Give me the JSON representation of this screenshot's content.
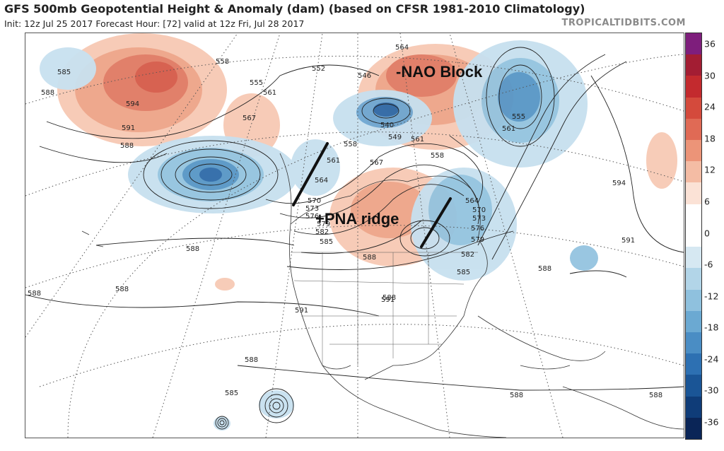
{
  "header": {
    "title": "GFS 500mb Geopotential Height & Anomaly (dam) (based on CFSR 1981-2010 Climatology)",
    "subtitle": "Init: 12z Jul 25 2017   Forecast Hour: [72]   valid at 12z Fri, Jul 28 2017",
    "brand": "TROPICALTIDBITS.COM"
  },
  "annotations": {
    "nao": "-NAO Block",
    "pna": "+PNA ridge"
  },
  "contour_labels": [
    "585",
    "588",
    "594",
    "591",
    "588",
    "558",
    "555",
    "561",
    "552",
    "567",
    "546",
    "564",
    "540",
    "549",
    "558",
    "561",
    "558",
    "564",
    "561",
    "567",
    "570",
    "573",
    "576",
    "579",
    "582",
    "585",
    "588",
    "591",
    "564",
    "570",
    "573",
    "576",
    "579",
    "582",
    "585",
    "588",
    "555",
    "561",
    "594",
    "591",
    "588",
    "588",
    "588",
    "588",
    "591",
    "588",
    "585",
    "588",
    "588"
  ],
  "colorbar": {
    "ticks": [
      "36",
      "30",
      "24",
      "18",
      "12",
      "6",
      "0",
      "-6",
      "-12",
      "-18",
      "-24",
      "-30",
      "-36"
    ],
    "colors": [
      "#7e1e7c",
      "#a31d33",
      "#c32a2e",
      "#d44a3c",
      "#e06a55",
      "#ec9478",
      "#f4bca4",
      "#fbe2d6",
      "#ffffff",
      "#ffffff",
      "#d6e8f2",
      "#b2d5e8",
      "#8fc1de",
      "#6ba9d2",
      "#4a8dc4",
      "#2d70b2",
      "#1a5596",
      "#0f3c78",
      "#0a2557"
    ]
  }
}
